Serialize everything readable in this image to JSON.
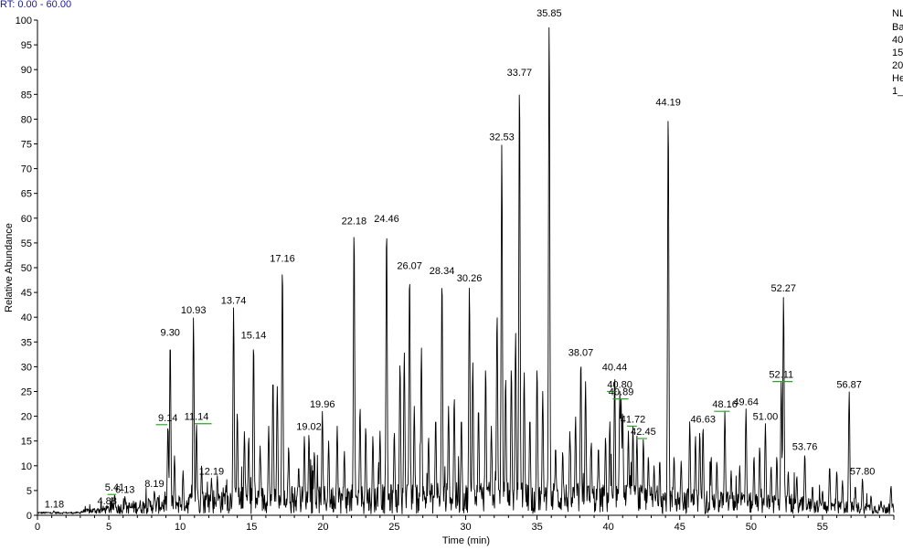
{
  "header": {
    "rt_range": "RT: 0.00 - 60.00",
    "info_lines": [
      "NL",
      "Ba",
      "40",
      "15",
      "20",
      "He",
      "1_"
    ]
  },
  "colors": {
    "trace": "#000000",
    "baseline_marker": "#2aa52a",
    "rt_text": "#1a1a9c"
  },
  "chart_data": {
    "type": "line",
    "xlabel": "Time (min)",
    "ylabel": "Relative Abundance",
    "xlim": [
      0,
      60
    ],
    "ylim": [
      0,
      100
    ],
    "x_ticks": [
      0,
      5,
      10,
      15,
      20,
      25,
      30,
      35,
      40,
      45,
      50,
      55
    ],
    "y_ticks": [
      0,
      5,
      10,
      15,
      20,
      25,
      30,
      35,
      40,
      45,
      50,
      55,
      60,
      65,
      70,
      75,
      80,
      85,
      90,
      95,
      100
    ],
    "labeled_peaks": [
      {
        "label": "1.18",
        "x": 1.18,
        "y": 0.8
      },
      {
        "label": "4.88",
        "x": 4.88,
        "y": 1.5
      },
      {
        "label": "5.41",
        "x": 5.41,
        "y": 4.2
      },
      {
        "label": "6.13",
        "x": 6.13,
        "y": 3.8
      },
      {
        "label": "8.19",
        "x": 8.19,
        "y": 5.0
      },
      {
        "label": "9.14",
        "x": 9.14,
        "y": 18.3
      },
      {
        "label": "9.30",
        "x": 9.3,
        "y": 35.5
      },
      {
        "label": "10.93",
        "x": 10.93,
        "y": 40.0
      },
      {
        "label": "11.14",
        "x": 11.14,
        "y": 18.5
      },
      {
        "label": "12.19",
        "x": 12.19,
        "y": 7.5
      },
      {
        "label": "13.74",
        "x": 13.74,
        "y": 42.0
      },
      {
        "label": "15.14",
        "x": 15.14,
        "y": 35.0
      },
      {
        "label": "17.16",
        "x": 17.16,
        "y": 50.5
      },
      {
        "label": "19.02",
        "x": 19.02,
        "y": 16.5
      },
      {
        "label": "19.96",
        "x": 19.96,
        "y": 21.0
      },
      {
        "label": "22.18",
        "x": 22.18,
        "y": 58.0
      },
      {
        "label": "24.46",
        "x": 24.46,
        "y": 58.5
      },
      {
        "label": "26.07",
        "x": 26.07,
        "y": 49.0
      },
      {
        "label": "28.34",
        "x": 28.34,
        "y": 48.0
      },
      {
        "label": "30.26",
        "x": 30.26,
        "y": 46.5
      },
      {
        "label": "32.53",
        "x": 32.53,
        "y": 75.0
      },
      {
        "label": "33.77",
        "x": 33.77,
        "y": 88.0
      },
      {
        "label": "35.85",
        "x": 35.85,
        "y": 100.0
      },
      {
        "label": "38.07",
        "x": 38.07,
        "y": 31.5
      },
      {
        "label": "40.44",
        "x": 40.44,
        "y": 28.5
      },
      {
        "label": "40.80",
        "x": 40.8,
        "y": 25.0
      },
      {
        "label": "40.89",
        "x": 40.89,
        "y": 23.5
      },
      {
        "label": "41.72",
        "x": 41.72,
        "y": 18.0
      },
      {
        "label": "42.45",
        "x": 42.45,
        "y": 15.5
      },
      {
        "label": "44.19",
        "x": 44.19,
        "y": 82.0
      },
      {
        "label": "46.63",
        "x": 46.63,
        "y": 18.0
      },
      {
        "label": "48.16",
        "x": 48.16,
        "y": 21.0
      },
      {
        "label": "49.64",
        "x": 49.64,
        "y": 21.5
      },
      {
        "label": "51.00",
        "x": 51.0,
        "y": 18.5
      },
      {
        "label": "52.11",
        "x": 52.11,
        "y": 27.0
      },
      {
        "label": "52.27",
        "x": 52.27,
        "y": 44.5
      },
      {
        "label": "53.76",
        "x": 53.76,
        "y": 12.5
      },
      {
        "label": "56.87",
        "x": 56.87,
        "y": 25.0
      },
      {
        "label": "57.80",
        "x": 57.8,
        "y": 7.5
      }
    ],
    "minor_peaks": [
      {
        "x": 9.6,
        "y": 12
      },
      {
        "x": 10.2,
        "y": 9
      },
      {
        "x": 11.5,
        "y": 10
      },
      {
        "x": 12.6,
        "y": 8
      },
      {
        "x": 13.2,
        "y": 6
      },
      {
        "x": 14.0,
        "y": 21
      },
      {
        "x": 14.5,
        "y": 17
      },
      {
        "x": 14.8,
        "y": 16
      },
      {
        "x": 15.6,
        "y": 14
      },
      {
        "x": 16.2,
        "y": 18
      },
      {
        "x": 16.5,
        "y": 28
      },
      {
        "x": 16.8,
        "y": 26
      },
      {
        "x": 17.6,
        "y": 14
      },
      {
        "x": 18.3,
        "y": 10
      },
      {
        "x": 18.7,
        "y": 16
      },
      {
        "x": 19.4,
        "y": 13
      },
      {
        "x": 20.4,
        "y": 15
      },
      {
        "x": 21.0,
        "y": 18
      },
      {
        "x": 21.5,
        "y": 13
      },
      {
        "x": 22.6,
        "y": 22
      },
      {
        "x": 23.0,
        "y": 18
      },
      {
        "x": 23.5,
        "y": 16
      },
      {
        "x": 24.0,
        "y": 17
      },
      {
        "x": 25.0,
        "y": 17
      },
      {
        "x": 25.4,
        "y": 31
      },
      {
        "x": 25.7,
        "y": 33
      },
      {
        "x": 26.4,
        "y": 22
      },
      {
        "x": 26.9,
        "y": 34
      },
      {
        "x": 27.4,
        "y": 16
      },
      {
        "x": 27.9,
        "y": 20
      },
      {
        "x": 28.8,
        "y": 22
      },
      {
        "x": 29.2,
        "y": 24
      },
      {
        "x": 29.7,
        "y": 20
      },
      {
        "x": 30.5,
        "y": 31
      },
      {
        "x": 30.9,
        "y": 22
      },
      {
        "x": 31.4,
        "y": 30
      },
      {
        "x": 31.8,
        "y": 18
      },
      {
        "x": 32.2,
        "y": 41
      },
      {
        "x": 32.8,
        "y": 28
      },
      {
        "x": 33.2,
        "y": 30
      },
      {
        "x": 33.5,
        "y": 37
      },
      {
        "x": 34.1,
        "y": 29
      },
      {
        "x": 34.5,
        "y": 20
      },
      {
        "x": 35.0,
        "y": 30
      },
      {
        "x": 35.4,
        "y": 25
      },
      {
        "x": 36.3,
        "y": 14
      },
      {
        "x": 36.8,
        "y": 13
      },
      {
        "x": 37.3,
        "y": 17
      },
      {
        "x": 37.7,
        "y": 20
      },
      {
        "x": 38.4,
        "y": 27
      },
      {
        "x": 38.8,
        "y": 15
      },
      {
        "x": 39.3,
        "y": 14
      },
      {
        "x": 39.8,
        "y": 16
      },
      {
        "x": 40.1,
        "y": 19
      },
      {
        "x": 41.0,
        "y": 21
      },
      {
        "x": 41.4,
        "y": 17
      },
      {
        "x": 42.0,
        "y": 16
      },
      {
        "x": 42.8,
        "y": 12
      },
      {
        "x": 43.2,
        "y": 10
      },
      {
        "x": 43.6,
        "y": 11
      },
      {
        "x": 44.6,
        "y": 12
      },
      {
        "x": 45.1,
        "y": 11
      },
      {
        "x": 45.7,
        "y": 19
      },
      {
        "x": 46.1,
        "y": 16
      },
      {
        "x": 46.4,
        "y": 17
      },
      {
        "x": 47.2,
        "y": 12
      },
      {
        "x": 47.6,
        "y": 11
      },
      {
        "x": 48.6,
        "y": 9
      },
      {
        "x": 49.2,
        "y": 10
      },
      {
        "x": 50.2,
        "y": 12
      },
      {
        "x": 50.6,
        "y": 14
      },
      {
        "x": 51.4,
        "y": 10
      },
      {
        "x": 51.8,
        "y": 12
      },
      {
        "x": 52.6,
        "y": 9
      },
      {
        "x": 53.2,
        "y": 8
      },
      {
        "x": 54.3,
        "y": 6
      },
      {
        "x": 55.0,
        "y": 5
      },
      {
        "x": 55.5,
        "y": 10
      },
      {
        "x": 56.0,
        "y": 9
      },
      {
        "x": 56.4,
        "y": 7
      },
      {
        "x": 57.3,
        "y": 6
      },
      {
        "x": 58.4,
        "y": 4
      },
      {
        "x": 59.1,
        "y": 3
      },
      {
        "x": 59.8,
        "y": 6
      }
    ],
    "baseline_markers": [
      {
        "x_start": 4.9,
        "x_end": 5.5,
        "y": 4.2
      },
      {
        "x_start": 8.3,
        "x_end": 9.1,
        "y": 18.3
      },
      {
        "x_start": 11.0,
        "x_end": 12.2,
        "y": 18.5
      },
      {
        "x_start": 39.9,
        "x_end": 40.6,
        "y": 25.0
      },
      {
        "x_start": 40.3,
        "x_end": 41.4,
        "y": 23.5
      },
      {
        "x_start": 41.3,
        "x_end": 42.0,
        "y": 18.0
      },
      {
        "x_start": 42.0,
        "x_end": 42.7,
        "y": 15.5
      },
      {
        "x_start": 47.4,
        "x_end": 48.5,
        "y": 21.0
      },
      {
        "x_start": 51.5,
        "x_end": 52.9,
        "y": 27.0
      }
    ]
  }
}
